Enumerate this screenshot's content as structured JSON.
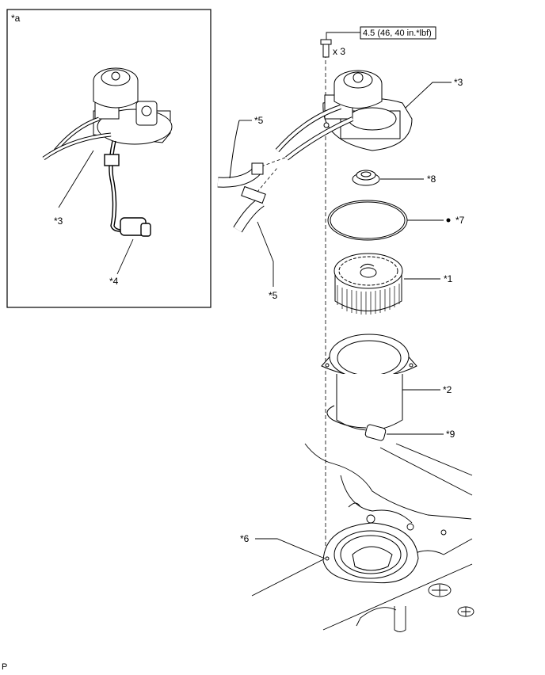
{
  "inset": {
    "label": "*a"
  },
  "inset_callouts": {
    "c3": "*3",
    "c4": "*4"
  },
  "torque": {
    "spec": "4.5 (46, 40 in.*lbf)",
    "qty": "x 3"
  },
  "callouts": {
    "c1": "*1",
    "c2": "*2",
    "c3": "*3",
    "c5a": "*5",
    "c5b": "*5",
    "c6": "*6",
    "c7": "*7",
    "c8": "*8",
    "c9": "*9"
  },
  "footer": {
    "code": "P"
  }
}
